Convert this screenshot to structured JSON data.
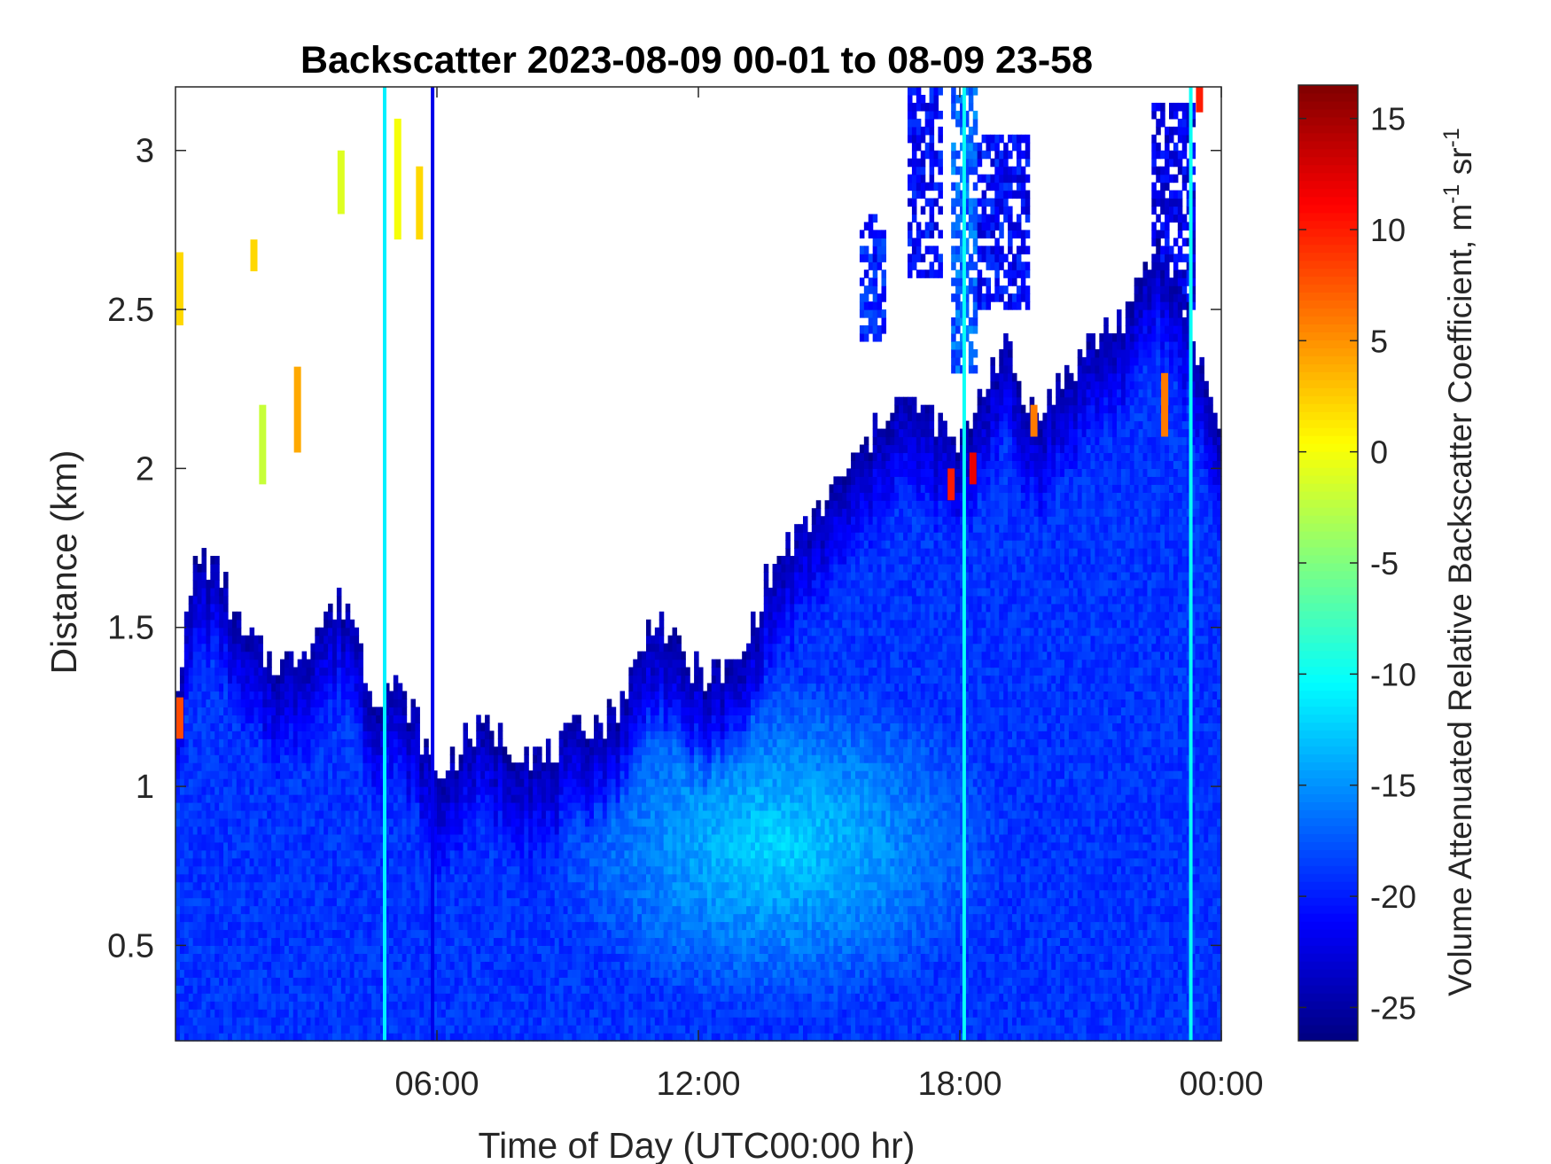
{
  "chart_data": {
    "type": "heatmap",
    "title": "Backscatter 2023-08-09 00-01 to 08-09 23-58",
    "xlabel": "Time of Day (UTC00:00 hr)",
    "ylabel": "Distance (km)",
    "xlim": [
      0,
      24
    ],
    "ylim": [
      0.2,
      3.2
    ],
    "x_ticks": [
      {
        "value": 6,
        "label": "06:00"
      },
      {
        "value": 12,
        "label": "12:00"
      },
      {
        "value": 18,
        "label": "18:00"
      },
      {
        "value": 24,
        "label": "00:00"
      }
    ],
    "y_ticks": [
      {
        "value": 0.5,
        "label": "0.5"
      },
      {
        "value": 1,
        "label": "1"
      },
      {
        "value": 1.5,
        "label": "1.5"
      },
      {
        "value": 2,
        "label": "2"
      },
      {
        "value": 2.5,
        "label": "2.5"
      },
      {
        "value": 3,
        "label": "3"
      }
    ],
    "colorbar": {
      "label": "Volume Attenuated Relative Backscatter Coefficient, m",
      "label_sup1": "-1",
      "label_mid": " sr",
      "label_sup2": "-1",
      "colormap": "jet",
      "clim": [
        -26.5,
        16.5
      ],
      "ticks": [
        {
          "value": 15,
          "label": "15"
        },
        {
          "value": 10,
          "label": "10"
        },
        {
          "value": 5,
          "label": "5"
        },
        {
          "value": 0,
          "label": "0"
        },
        {
          "value": -5,
          "label": "-5"
        },
        {
          "value": -10,
          "label": "-10"
        },
        {
          "value": -15,
          "label": "-15"
        },
        {
          "value": -20,
          "label": "-20"
        },
        {
          "value": -25,
          "label": "-25"
        }
      ]
    },
    "layer_top_km": [
      [
        0.0,
        1.3
      ],
      [
        0.5,
        1.72
      ],
      [
        1.0,
        1.68
      ],
      [
        1.5,
        1.48
      ],
      [
        2.0,
        1.42
      ],
      [
        2.5,
        1.38
      ],
      [
        3.0,
        1.45
      ],
      [
        3.5,
        1.55
      ],
      [
        4.0,
        1.58
      ],
      [
        4.5,
        1.3
      ],
      [
        5.0,
        1.32
      ],
      [
        5.5,
        1.22
      ],
      [
        6.0,
        1.02
      ],
      [
        6.5,
        1.12
      ],
      [
        7.0,
        1.18
      ],
      [
        7.5,
        1.15
      ],
      [
        8.0,
        1.12
      ],
      [
        8.5,
        1.08
      ],
      [
        9.0,
        1.15
      ],
      [
        9.5,
        1.2
      ],
      [
        10.0,
        1.22
      ],
      [
        10.5,
        1.35
      ],
      [
        11.0,
        1.55
      ],
      [
        11.5,
        1.42
      ],
      [
        12.0,
        1.35
      ],
      [
        12.5,
        1.35
      ],
      [
        13.0,
        1.4
      ],
      [
        13.5,
        1.62
      ],
      [
        14.0,
        1.75
      ],
      [
        14.5,
        1.82
      ],
      [
        15.0,
        1.92
      ],
      [
        15.5,
        2.0
      ],
      [
        16.0,
        2.1
      ],
      [
        16.5,
        2.22
      ],
      [
        17.0,
        2.2
      ],
      [
        17.5,
        2.15
      ],
      [
        18.0,
        2.05
      ],
      [
        18.5,
        2.25
      ],
      [
        19.0,
        2.4
      ],
      [
        19.5,
        2.2
      ],
      [
        20.0,
        2.2
      ],
      [
        20.5,
        2.3
      ],
      [
        21.0,
        2.4
      ],
      [
        21.5,
        2.45
      ],
      [
        22.0,
        2.52
      ],
      [
        22.5,
        2.7
      ],
      [
        23.0,
        2.6
      ],
      [
        23.5,
        2.35
      ],
      [
        24.0,
        2.1
      ]
    ],
    "layer_core": {
      "time_hr": 13.8,
      "distance_km": 0.82,
      "value": -12
    },
    "typical_layer_value": -19,
    "upper_cloud_patches": [
      {
        "t0": 15.7,
        "t1": 16.3,
        "z0": 2.4,
        "z1": 2.8,
        "value": -20
      },
      {
        "t0": 16.8,
        "t1": 17.6,
        "z0": 2.6,
        "z1": 3.2,
        "value": -21
      },
      {
        "t0": 17.8,
        "t1": 18.4,
        "z0": 2.3,
        "z1": 3.2,
        "value": -17
      },
      {
        "t0": 18.4,
        "t1": 19.6,
        "z0": 2.5,
        "z1": 3.05,
        "value": -21
      },
      {
        "t0": 22.4,
        "t1": 23.4,
        "z0": 2.5,
        "z1": 3.15,
        "value": -22
      }
    ],
    "hot_spots": [
      {
        "t": 0.1,
        "z0": 2.45,
        "z1": 2.68,
        "value": 2
      },
      {
        "t": 0.1,
        "z0": 1.15,
        "z1": 1.28,
        "value": 8
      },
      {
        "t": 1.8,
        "z0": 2.62,
        "z1": 2.72,
        "value": 2
      },
      {
        "t": 2.0,
        "z0": 1.95,
        "z1": 2.2,
        "value": -2
      },
      {
        "t": 2.8,
        "z0": 2.05,
        "z1": 2.32,
        "value": 4
      },
      {
        "t": 3.8,
        "z0": 2.8,
        "z1": 3.0,
        "value": -1
      },
      {
        "t": 5.1,
        "z0": 2.72,
        "z1": 3.1,
        "value": 0
      },
      {
        "t": 5.6,
        "z0": 2.72,
        "z1": 2.95,
        "value": 2
      },
      {
        "t": 17.8,
        "z0": 1.9,
        "z1": 2.0,
        "value": 10
      },
      {
        "t": 18.3,
        "z0": 1.95,
        "z1": 2.05,
        "value": 12
      },
      {
        "t": 19.7,
        "z0": 2.1,
        "z1": 2.2,
        "value": 6
      },
      {
        "t": 22.7,
        "z0": 2.1,
        "z1": 2.3,
        "value": 6
      },
      {
        "t": 23.5,
        "z0": 3.12,
        "z1": 3.2,
        "value": 10
      }
    ],
    "vertical_streaks": [
      {
        "t": 4.8,
        "z0": 0.2,
        "z1": 3.2,
        "value": -11
      },
      {
        "t": 5.9,
        "z0": 0.2,
        "z1": 3.2,
        "value": -22
      },
      {
        "t": 18.1,
        "z0": 0.2,
        "z1": 3.2,
        "value": -10
      },
      {
        "t": 23.3,
        "z0": 0.2,
        "z1": 3.2,
        "value": -10
      }
    ]
  }
}
